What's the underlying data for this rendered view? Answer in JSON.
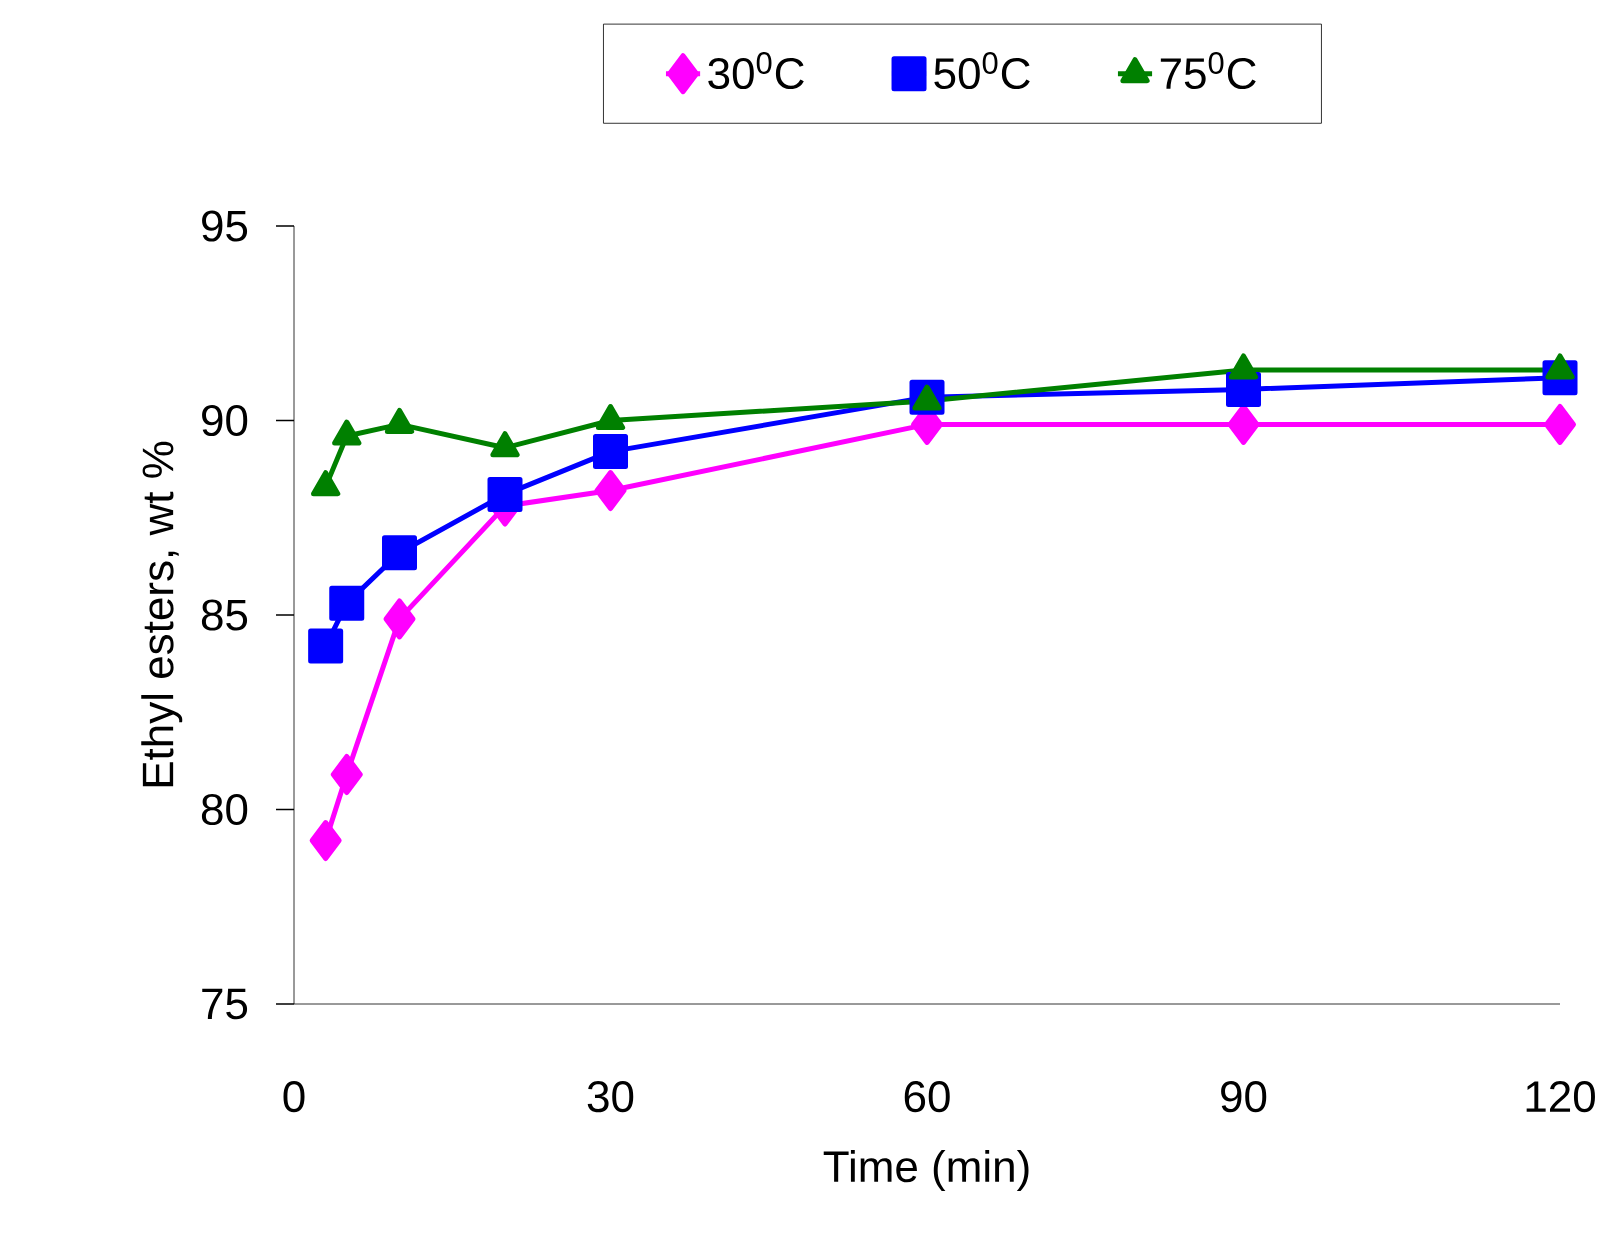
{
  "chart_data": {
    "type": "line",
    "xlabel": "Time (min)",
    "ylabel": "Ethyl esters, wt %",
    "x": [
      3,
      5,
      10,
      20,
      30,
      60,
      90,
      120
    ],
    "series": [
      {
        "name": "30$^{0}$C",
        "color": "#ff00ff",
        "marker": "diamond",
        "values": [
          79.2,
          80.9,
          84.9,
          87.8,
          88.2,
          89.9,
          89.9,
          89.9
        ]
      },
      {
        "name": "50$^{0}$C",
        "color": "#0000ff",
        "marker": "square",
        "values": [
          84.2,
          85.3,
          86.6,
          88.1,
          89.2,
          90.6,
          90.8,
          91.1
        ]
      },
      {
        "name": "75$^{0}$C",
        "color": "#008000",
        "marker": "triangle",
        "values": [
          88.3,
          89.6,
          89.9,
          89.3,
          90.0,
          90.5,
          91.3,
          91.3
        ]
      }
    ],
    "xlim": [
      0,
      120
    ],
    "xticks": [
      0,
      30,
      60,
      90,
      120
    ],
    "ylim": [
      75,
      95
    ],
    "yticks": [
      75,
      80,
      85,
      90,
      95
    ],
    "legend": "top",
    "grid": false,
    "line_style": "solid"
  }
}
